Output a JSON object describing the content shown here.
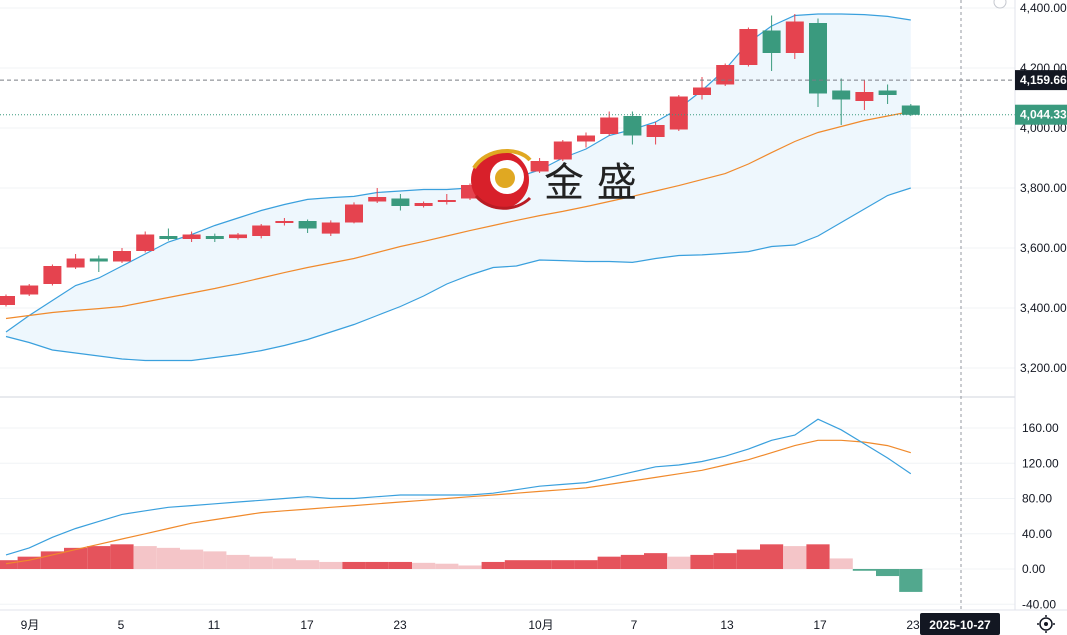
{
  "colors": {
    "up": "#e5434f",
    "down": "#3a9a7e",
    "band_fill": "#eef7fd",
    "band_line": "#3aa0dd",
    "mid_line": "#f08a2c",
    "macd_fast": "#3aa0dd",
    "macd_slow": "#f08a2c",
    "hist_up_strong": "#e5535c",
    "hist_up_weak": "#f4c5c8",
    "hist_down_strong": "#52a88e",
    "grid": "#f0f3f6",
    "axis_text": "#131722"
  },
  "watermark": {
    "text": "金 盛",
    "logo": "golden-globe-logo"
  },
  "x_axis": {
    "labels": [
      "9月",
      "5",
      "11",
      "17",
      "23",
      "10月",
      "7",
      "13",
      "17",
      "23"
    ],
    "current_date": "2025-10-27"
  },
  "settings_icon": "gear-icon",
  "chart_data": [
    {
      "type": "candlestick",
      "title": "",
      "y_ticks": [
        "4,400.00",
        "4,200.00",
        "4,000.00",
        "3,800.00",
        "3,600.00",
        "3,400.00",
        "3,200.00"
      ],
      "y_tick_values": [
        4400,
        4200,
        4000,
        3800,
        3600,
        3400,
        3200
      ],
      "ylim": [
        3110,
        4410
      ],
      "price_labels": [
        {
          "value": 4159.66,
          "text": "4,159.66",
          "style": "dark"
        },
        {
          "value": 4044.33,
          "text": "4,044.33",
          "style": "green"
        }
      ],
      "candles": [
        {
          "o": 3410,
          "c": 3440,
          "h": 3445,
          "l": 3405
        },
        {
          "o": 3445,
          "c": 3475,
          "h": 3480,
          "l": 3440
        },
        {
          "o": 3480,
          "c": 3540,
          "h": 3545,
          "l": 3475
        },
        {
          "o": 3535,
          "c": 3565,
          "h": 3580,
          "l": 3530
        },
        {
          "o": 3565,
          "c": 3555,
          "h": 3575,
          "l": 3520
        },
        {
          "o": 3555,
          "c": 3590,
          "h": 3600,
          "l": 3550
        },
        {
          "o": 3590,
          "c": 3645,
          "h": 3655,
          "l": 3585
        },
        {
          "o": 3640,
          "c": 3630,
          "h": 3665,
          "l": 3625
        },
        {
          "o": 3630,
          "c": 3645,
          "h": 3655,
          "l": 3620
        },
        {
          "o": 3640,
          "c": 3630,
          "h": 3648,
          "l": 3620
        },
        {
          "o": 3633,
          "c": 3645,
          "h": 3650,
          "l": 3628
        },
        {
          "o": 3640,
          "c": 3675,
          "h": 3680,
          "l": 3632
        },
        {
          "o": 3685,
          "c": 3690,
          "h": 3700,
          "l": 3675
        },
        {
          "o": 3690,
          "c": 3665,
          "h": 3695,
          "l": 3650
        },
        {
          "o": 3648,
          "c": 3685,
          "h": 3692,
          "l": 3640
        },
        {
          "o": 3685,
          "c": 3745,
          "h": 3752,
          "l": 3682
        },
        {
          "o": 3755,
          "c": 3770,
          "h": 3800,
          "l": 3750
        },
        {
          "o": 3765,
          "c": 3740,
          "h": 3780,
          "l": 3725
        },
        {
          "o": 3740,
          "c": 3750,
          "h": 3755,
          "l": 3735
        },
        {
          "o": 3755,
          "c": 3760,
          "h": 3780,
          "l": 3745
        },
        {
          "o": 3765,
          "c": 3810,
          "h": 3815,
          "l": 3760
        },
        {
          "o": 3825,
          "c": 3850,
          "h": 3860,
          "l": 3815
        },
        {
          "o": 3850,
          "c": 3855,
          "h": 3870,
          "l": 3840
        },
        {
          "o": 3855,
          "c": 3890,
          "h": 3900,
          "l": 3850
        },
        {
          "o": 3895,
          "c": 3955,
          "h": 3960,
          "l": 3890
        },
        {
          "o": 3955,
          "c": 3975,
          "h": 3985,
          "l": 3935
        },
        {
          "o": 3980,
          "c": 4035,
          "h": 4055,
          "l": 3975
        },
        {
          "o": 4040,
          "c": 3975,
          "h": 4055,
          "l": 3945
        },
        {
          "o": 3970,
          "c": 4010,
          "h": 4020,
          "l": 3945
        },
        {
          "o": 3995,
          "c": 4105,
          "h": 4110,
          "l": 3990
        },
        {
          "o": 4110,
          "c": 4135,
          "h": 4170,
          "l": 4095
        },
        {
          "o": 4145,
          "c": 4210,
          "h": 4215,
          "l": 4140
        },
        {
          "o": 4210,
          "c": 4330,
          "h": 4335,
          "l": 4205
        },
        {
          "o": 4325,
          "c": 4250,
          "h": 4375,
          "l": 4190
        },
        {
          "o": 4250,
          "c": 4355,
          "h": 4380,
          "l": 4230
        },
        {
          "o": 4350,
          "c": 4115,
          "h": 4365,
          "l": 4070
        },
        {
          "o": 4125,
          "c": 4095,
          "h": 4165,
          "l": 4010
        },
        {
          "o": 4090,
          "c": 4120,
          "h": 4160,
          "l": 4060
        },
        {
          "o": 4125,
          "c": 4110,
          "h": 4145,
          "l": 4080
        },
        {
          "o": 4075,
          "c": 4044,
          "h": 4080,
          "l": 4040
        }
      ],
      "bb_upper": [
        3320,
        3375,
        3425,
        3475,
        3500,
        3540,
        3580,
        3620,
        3645,
        3675,
        3700,
        3725,
        3745,
        3762,
        3768,
        3772,
        3785,
        3790,
        3795,
        3795,
        3800,
        3815,
        3835,
        3860,
        3900,
        3930,
        3975,
        3995,
        4020,
        4065,
        4125,
        4195,
        4285,
        4340,
        4375,
        4380,
        4380,
        4378,
        4372,
        4360
      ],
      "bb_mid": [
        3365,
        3375,
        3385,
        3392,
        3398,
        3405,
        3420,
        3435,
        3450,
        3465,
        3482,
        3500,
        3518,
        3535,
        3550,
        3565,
        3585,
        3605,
        3622,
        3640,
        3658,
        3675,
        3692,
        3708,
        3722,
        3738,
        3755,
        3772,
        3790,
        3808,
        3828,
        3848,
        3880,
        3918,
        3955,
        3985,
        4005,
        4025,
        4040,
        4055
      ],
      "bb_lower": [
        3305,
        3285,
        3260,
        3250,
        3240,
        3230,
        3225,
        3225,
        3225,
        3235,
        3245,
        3258,
        3275,
        3295,
        3320,
        3345,
        3375,
        3405,
        3440,
        3480,
        3510,
        3535,
        3540,
        3560,
        3558,
        3555,
        3555,
        3552,
        3565,
        3575,
        3577,
        3582,
        3588,
        3605,
        3610,
        3640,
        3685,
        3730,
        3775,
        3800
      ]
    },
    {
      "type": "macd",
      "title": "",
      "y_ticks": [
        "160.00",
        "120.00",
        "80.00",
        "40.00",
        "0.00",
        "-40.00"
      ],
      "y_tick_values": [
        160,
        120,
        80,
        40,
        0,
        -40
      ],
      "ylim": [
        -42,
        184
      ],
      "fast": [
        16,
        24,
        36,
        46,
        54,
        62,
        66,
        70,
        72,
        74,
        76,
        78,
        80,
        82,
        80,
        80,
        82,
        84,
        84,
        84,
        84,
        86,
        90,
        94,
        96,
        98,
        104,
        110,
        116,
        118,
        122,
        128,
        136,
        146,
        152,
        170,
        158,
        142,
        126,
        108
      ],
      "slow": [
        6,
        10,
        16,
        22,
        28,
        34,
        40,
        46,
        52,
        56,
        60,
        64,
        66,
        68,
        70,
        72,
        74,
        76,
        78,
        80,
        82,
        84,
        86,
        88,
        90,
        92,
        96,
        100,
        104,
        108,
        112,
        118,
        124,
        132,
        140,
        146,
        146,
        144,
        140,
        132
      ],
      "histogram": [
        10,
        14,
        20,
        24,
        26,
        28,
        26,
        24,
        22,
        20,
        16,
        14,
        12,
        10,
        8,
        8,
        8,
        8,
        7,
        6,
        4,
        8,
        10,
        10,
        10,
        10,
        14,
        16,
        18,
        14,
        16,
        18,
        22,
        28,
        26,
        28,
        12,
        -2,
        -8,
        -26
      ]
    }
  ]
}
